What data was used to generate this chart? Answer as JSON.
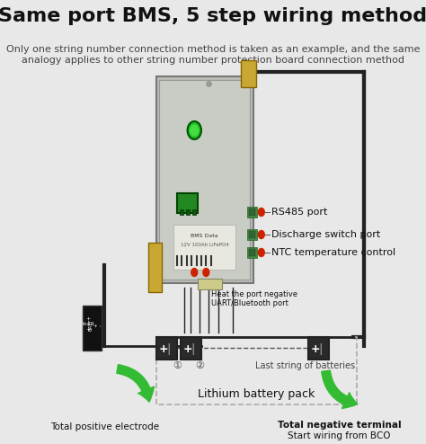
{
  "title": "Same port BMS, 5 step wiring method",
  "subtitle1": "Only one string number connection method is taken as an example, and the same",
  "subtitle2": "analogy applies to other string number protection board connection method",
  "bg_color": "#e8e8e8",
  "bms_facecolor": "#c0c4bc",
  "bms_inner": "#cdd0cb",
  "bms_border": "#888888",
  "green_color": "#33bb33",
  "red_color": "#cc2200",
  "gold_color": "#c8a832",
  "wire_color": "#222222",
  "port_labels": [
    "RS485 port",
    "Discharge switch port",
    "NTC temperature control"
  ],
  "bottom_labels": {
    "positive": "Total positive electrode",
    "negative_l1": "Total negative terminal",
    "negative_l2": "Start wiring from BCO",
    "battery_pack": "Lithium battery pack",
    "last_string": "Last string of batteries",
    "heat_neg": "Heat the port negative",
    "uart": "UART/Bluetooth port"
  },
  "title_fontsize": 16,
  "subtitle_fontsize": 8,
  "label_fontsize": 7.5,
  "port_fontsize": 8
}
